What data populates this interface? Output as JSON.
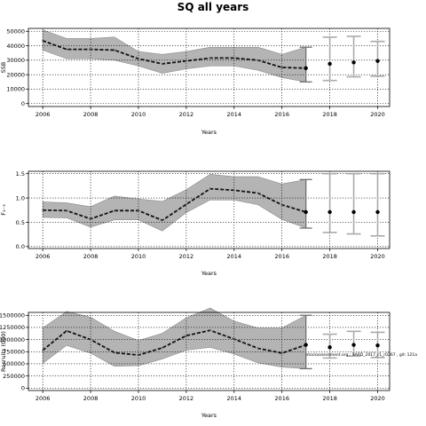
{
  "figure": {
    "title": "SQ all years"
  },
  "chart_data": [
    {
      "type": "line",
      "title": "",
      "xlabel": "Years",
      "ylabel": "SSB",
      "xlim": [
        2005.4,
        2020.5
      ],
      "ylim": [
        -2000,
        52000
      ],
      "xticks": [
        2006,
        2008,
        2010,
        2012,
        2014,
        2016,
        2018,
        2020
      ],
      "yticks": [
        0,
        10000,
        20000,
        30000,
        40000,
        50000
      ],
      "ytick_labels": [
        "0",
        "10000",
        "20000",
        "30000",
        "40000",
        "50000"
      ],
      "grid": true,
      "historical": {
        "x": [
          2006,
          2007,
          2008,
          2009,
          2010,
          2011,
          2012,
          2013,
          2014,
          2015,
          2016,
          2017
        ],
        "median": [
          43500,
          37500,
          37500,
          37000,
          31000,
          27500,
          29500,
          31500,
          31500,
          30000,
          25000,
          24500
        ],
        "lower": [
          37000,
          31000,
          31000,
          30000,
          26000,
          21000,
          24000,
          26000,
          26000,
          23000,
          18000,
          15000
        ],
        "upper": [
          51000,
          45000,
          45000,
          46000,
          36000,
          34000,
          36000,
          39000,
          39000,
          39000,
          34000,
          39000
        ]
      },
      "projection": {
        "x": [
          2018,
          2019,
          2020
        ],
        "median": [
          27500,
          28500,
          29500
        ],
        "lower": [
          16000,
          18500,
          19000
        ],
        "upper": [
          46000,
          46500,
          43000
        ]
      }
    },
    {
      "type": "line",
      "title": "",
      "xlabel": "Years",
      "ylabel": "F₁₋₃",
      "xlim": [
        2005.4,
        2020.5
      ],
      "ylim": [
        -0.04,
        1.55
      ],
      "xticks": [
        2006,
        2008,
        2010,
        2012,
        2014,
        2016,
        2018,
        2020
      ],
      "yticks": [
        0.0,
        0.5,
        1.0,
        1.5
      ],
      "ytick_labels": [
        "0.0",
        "0.5",
        "1.0",
        "1.5"
      ],
      "grid": true,
      "historical": {
        "x": [
          2006,
          2007,
          2008,
          2009,
          2010,
          2011,
          2012,
          2013,
          2014,
          2015,
          2016,
          2017
        ],
        "median": [
          0.75,
          0.74,
          0.57,
          0.74,
          0.74,
          0.54,
          0.87,
          1.19,
          1.16,
          1.1,
          0.86,
          0.71
        ],
        "lower": [
          0.6,
          0.59,
          0.4,
          0.55,
          0.55,
          0.32,
          0.7,
          0.96,
          0.96,
          0.86,
          0.56,
          0.38
        ],
        "upper": [
          0.92,
          0.9,
          0.82,
          1.04,
          0.98,
          0.93,
          1.17,
          1.49,
          1.44,
          1.44,
          1.29,
          1.38
        ]
      },
      "projection": {
        "x": [
          2018,
          2019,
          2020
        ],
        "median": [
          0.71,
          0.71,
          0.71
        ],
        "lower": [
          0.29,
          0.26,
          0.22
        ],
        "upper": [
          1.5,
          1.5,
          1.5
        ]
      }
    },
    {
      "type": "line",
      "title": "",
      "xlabel": "Years",
      "ylabel": "Recruits (000)",
      "xlim": [
        2005.4,
        2020.5
      ],
      "ylim": [
        -50000,
        1560000
      ],
      "xticks": [
        2006,
        2008,
        2010,
        2012,
        2014,
        2016,
        2018,
        2020
      ],
      "yticks": [
        0,
        250000,
        500000,
        750000,
        1000000,
        1250000,
        1500000
      ],
      "ytick_labels": [
        "0",
        "250000",
        "500000",
        "750000",
        "1000000",
        "1250000",
        "1500000"
      ],
      "grid": true,
      "historical": {
        "x": [
          2006,
          2007,
          2008,
          2009,
          2010,
          2011,
          2012,
          2013,
          2014,
          2015,
          2016,
          2017
        ],
        "median": [
          780000,
          1180000,
          1000000,
          730000,
          680000,
          830000,
          1080000,
          1190000,
          1010000,
          820000,
          720000,
          890000
        ],
        "lower": [
          510000,
          880000,
          720000,
          450000,
          460000,
          600000,
          780000,
          840000,
          700000,
          520000,
          430000,
          400000
        ],
        "upper": [
          1240000,
          1580000,
          1460000,
          1170000,
          980000,
          1130000,
          1450000,
          1650000,
          1380000,
          1240000,
          1240000,
          1500000
        ]
      },
      "projection": {
        "x": [
          2018,
          2019,
          2020
        ],
        "median": [
          840000,
          890000,
          880000
        ],
        "lower": [
          620000,
          660000,
          630000
        ],
        "upper": [
          1110000,
          1170000,
          1150000
        ]
      },
      "annotation": "stockassessment.org : SARD_2017_r1_r0267 , git: 121a"
    }
  ]
}
